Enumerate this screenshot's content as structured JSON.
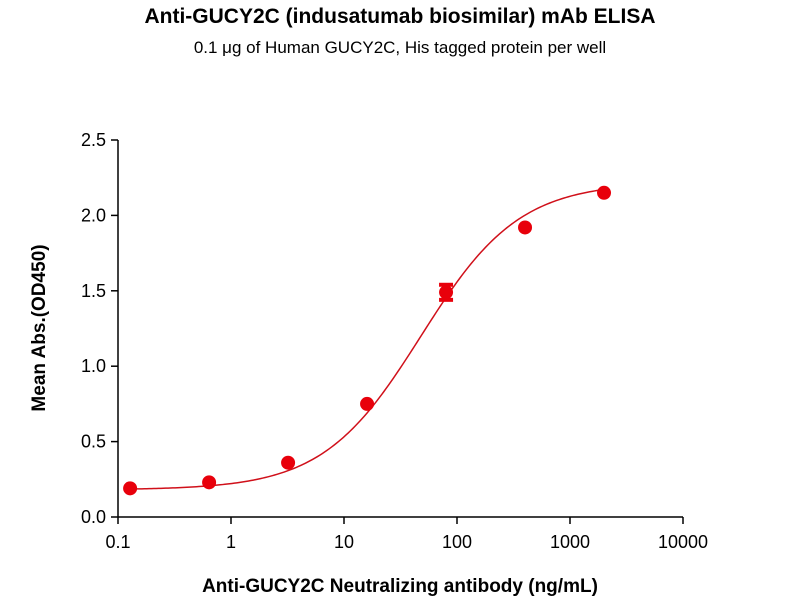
{
  "chart_data": {
    "type": "scatter",
    "title": "Anti-GUCY2C (indusatumab biosimilar) mAb ELISA",
    "subtitle": "0.1 μg of Human GUCY2C, His tagged protein per well",
    "xlabel": "Anti-GUCY2C Neutralizing antibody (ng/mL)",
    "ylabel": "Mean Abs.(OD450)",
    "xscale": "log",
    "xlim": [
      0.1,
      10000
    ],
    "ylim": [
      0,
      2.5
    ],
    "xticks": [
      0.1,
      1,
      10,
      100,
      1000,
      10000
    ],
    "xtick_labels": [
      "0.1",
      "1",
      "10",
      "100",
      "1000",
      "10000"
    ],
    "yticks": [
      0,
      0.5,
      1,
      1.5,
      2,
      2.5
    ],
    "ytick_labels": [
      "0.0",
      "0.5",
      "1.0",
      "1.5",
      "2.0",
      "2.5"
    ],
    "grid": false,
    "color": "#e8000b",
    "series": [
      {
        "name": "Anti-GUCY2C",
        "x": [
          0.128,
          0.64,
          3.2,
          16,
          80,
          400,
          2000
        ],
        "y": [
          0.19,
          0.23,
          0.36,
          0.75,
          1.49,
          1.92,
          2.15
        ],
        "yerr": [
          0,
          0,
          0,
          0,
          0.05,
          0,
          0
        ]
      }
    ],
    "fit": {
      "model": "4PL",
      "bottom": 0.18,
      "top": 2.22,
      "ec50": 48,
      "hill": 1.0
    }
  }
}
